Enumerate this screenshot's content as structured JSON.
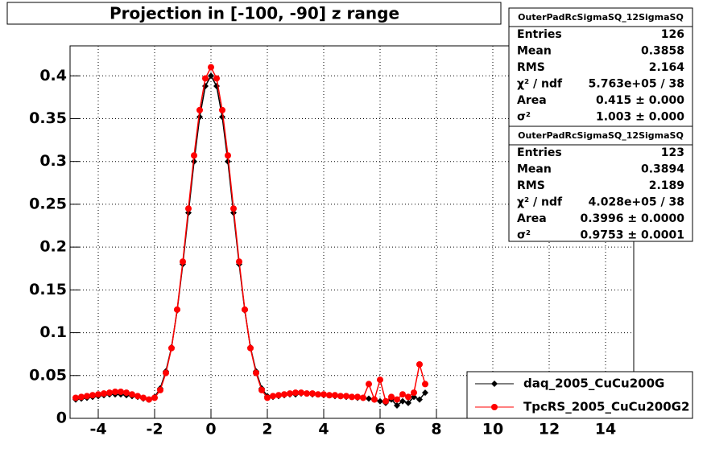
{
  "chart_data": {
    "type": "line",
    "title": "Projection in [-100, -90] z range",
    "x": [
      -4.8,
      -4.6,
      -4.4,
      -4.2,
      -4.0,
      -3.8,
      -3.6,
      -3.4,
      -3.2,
      -3.0,
      -2.8,
      -2.6,
      -2.4,
      -2.2,
      -2.0,
      -1.8,
      -1.6,
      -1.4,
      -1.2,
      -1.0,
      -0.8,
      -0.6,
      -0.4,
      -0.2,
      0,
      0.2,
      0.4,
      0.6,
      0.8,
      1.0,
      1.2,
      1.4,
      1.6,
      1.8,
      2.0,
      2.2,
      2.4,
      2.6,
      2.8,
      3.0,
      3.2,
      3.4,
      3.6,
      3.8,
      4.0,
      4.2,
      4.4,
      4.6,
      4.8,
      5.0,
      5.2,
      5.4,
      5.6,
      5.8,
      6.0,
      6.2,
      6.4,
      6.6,
      6.8,
      7.0,
      7.2,
      7.4,
      7.6
    ],
    "series": [
      {
        "name": "daq_2005_CuCu200G",
        "color": "#000000",
        "marker": "diamond",
        "values": [
          0.022,
          0.023,
          0.024,
          0.025,
          0.026,
          0.027,
          0.028,
          0.028,
          0.028,
          0.027,
          0.026,
          0.025,
          0.023,
          0.022,
          0.025,
          0.035,
          0.055,
          0.083,
          0.126,
          0.18,
          0.24,
          0.3,
          0.352,
          0.388,
          0.4,
          0.388,
          0.352,
          0.3,
          0.24,
          0.18,
          0.126,
          0.083,
          0.055,
          0.035,
          0.026,
          0.025,
          0.026,
          0.027,
          0.028,
          0.028,
          0.029,
          0.029,
          0.028,
          0.028,
          0.027,
          0.027,
          0.026,
          0.026,
          0.025,
          0.025,
          0.024,
          0.024,
          0.023,
          0.022,
          0.02,
          0.018,
          0.022,
          0.015,
          0.02,
          0.018,
          0.025,
          0.022,
          0.03
        ]
      },
      {
        "name": "TpcRS_2005_CuCu200G2",
        "color": "#ff0000",
        "marker": "circle",
        "values": [
          0.024,
          0.025,
          0.026,
          0.027,
          0.028,
          0.029,
          0.03,
          0.031,
          0.031,
          0.03,
          0.028,
          0.026,
          0.024,
          0.022,
          0.024,
          0.033,
          0.053,
          0.082,
          0.127,
          0.183,
          0.245,
          0.307,
          0.36,
          0.397,
          0.41,
          0.397,
          0.36,
          0.307,
          0.245,
          0.183,
          0.127,
          0.082,
          0.053,
          0.033,
          0.024,
          0.026,
          0.027,
          0.028,
          0.029,
          0.03,
          0.03,
          0.029,
          0.029,
          0.028,
          0.028,
          0.027,
          0.027,
          0.026,
          0.026,
          0.025,
          0.025,
          0.024,
          0.04,
          0.022,
          0.045,
          0.02,
          0.025,
          0.022,
          0.028,
          0.025,
          0.03,
          0.063,
          0.04
        ]
      }
    ],
    "xlim": [
      -5,
      15
    ],
    "xticks": [
      -4,
      -2,
      0,
      2,
      4,
      6,
      8,
      10,
      12,
      14
    ],
    "ylim": [
      0,
      0.435
    ],
    "yticks": [
      0,
      0.05,
      0.1,
      0.15,
      0.2,
      0.25,
      0.3,
      0.35,
      0.4
    ],
    "grid": true,
    "legend": "lower right",
    "stats": [
      {
        "title": "OuterPadRcSigmaSQ_12SigmaSQ",
        "rows": [
          {
            "label": "Entries",
            "value": "126"
          },
          {
            "label": "Mean",
            "value": "0.3858"
          },
          {
            "label": "RMS",
            "value": "2.164"
          },
          {
            "label": "χ² / ndf",
            "value": "5.763e+05 / 38"
          },
          {
            "label": "Area",
            "value": "0.415 ± 0.000"
          },
          {
            "label": "σ²",
            "value": "1.003 ± 0.000"
          }
        ]
      },
      {
        "title": "OuterPadRcSigmaSQ_12SigmaSQ",
        "rows": [
          {
            "label": "Entries",
            "value": "123"
          },
          {
            "label": "Mean",
            "value": "0.3894"
          },
          {
            "label": "RMS",
            "value": "2.189"
          },
          {
            "label": "χ² / ndf",
            "value": "4.028e+05 / 38"
          },
          {
            "label": "Area",
            "value": "0.3996 ± 0.0000"
          },
          {
            "label": "σ²",
            "value": "0.9753 ± 0.0001"
          }
        ]
      }
    ]
  }
}
